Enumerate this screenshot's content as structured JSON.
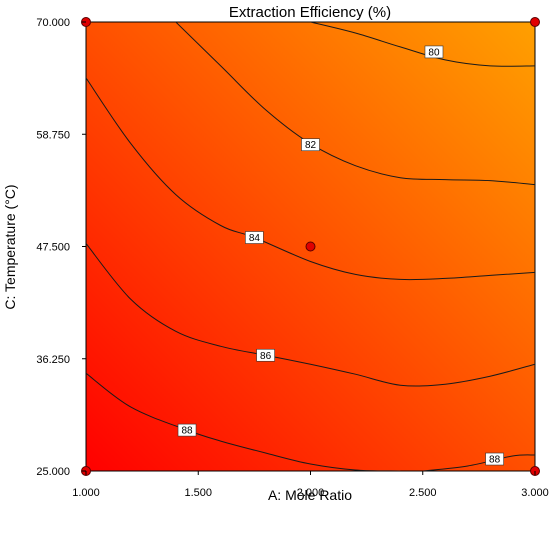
{
  "chart_data": {
    "type": "contour",
    "title": "Extraction Efficiency (%)",
    "xlabel": "A: Mole Ratio",
    "ylabel": "C: Temperature (°C)",
    "xlim": [
      1.0,
      3.0
    ],
    "ylim": [
      25.0,
      70.0
    ],
    "x_ticks": [
      "1.000",
      "1.500",
      "2.000",
      "2.500",
      "3.000"
    ],
    "y_ticks": [
      "25.000",
      "36.250",
      "47.500",
      "58.750",
      "70.000"
    ],
    "colors": {
      "low": "#ffa000",
      "high": "#ff0000"
    },
    "contours": [
      {
        "level": 80,
        "label": "80",
        "label_at": [
          2.55,
          67.0
        ],
        "points": [
          [
            2.0,
            70.0
          ],
          [
            2.2,
            68.9
          ],
          [
            2.4,
            67.5
          ],
          [
            2.6,
            66.2
          ],
          [
            2.8,
            65.6
          ],
          [
            3.0,
            65.6
          ]
        ]
      },
      {
        "level": 82,
        "label": "82",
        "label_at": [
          2.0,
          57.7
        ],
        "points": [
          [
            1.4,
            70.0
          ],
          [
            1.6,
            65.6
          ],
          [
            1.8,
            61.2
          ],
          [
            2.0,
            57.8
          ],
          [
            2.2,
            55.6
          ],
          [
            2.4,
            54.4
          ],
          [
            2.6,
            54.2
          ],
          [
            2.8,
            54.1
          ],
          [
            3.0,
            53.7
          ]
        ]
      },
      {
        "level": 84,
        "label": "84",
        "label_at": [
          1.75,
          48.4
        ],
        "points": [
          [
            1.0,
            64.4
          ],
          [
            1.2,
            57.8
          ],
          [
            1.4,
            52.7
          ],
          [
            1.6,
            49.6
          ],
          [
            1.75,
            48.4
          ],
          [
            2.0,
            46.0
          ],
          [
            2.2,
            44.7
          ],
          [
            2.4,
            44.2
          ],
          [
            2.6,
            44.3
          ],
          [
            2.8,
            44.6
          ],
          [
            3.0,
            44.9
          ]
        ]
      },
      {
        "level": 86,
        "label": "86",
        "label_at": [
          1.8,
          36.6
        ],
        "points": [
          [
            1.0,
            47.8
          ],
          [
            1.2,
            42.2
          ],
          [
            1.4,
            39.0
          ],
          [
            1.6,
            37.5
          ],
          [
            1.8,
            36.6
          ],
          [
            2.0,
            35.7
          ],
          [
            2.2,
            34.7
          ],
          [
            2.4,
            33.6
          ],
          [
            2.6,
            33.7
          ],
          [
            2.8,
            34.5
          ],
          [
            3.0,
            35.7
          ]
        ]
      },
      {
        "level": 88,
        "label": "88",
        "label_at": [
          1.45,
          29.1
        ],
        "points": [
          [
            1.0,
            34.8
          ],
          [
            1.2,
            31.4
          ],
          [
            1.45,
            29.1
          ],
          [
            1.6,
            28.0
          ],
          [
            1.8,
            26.8
          ],
          [
            2.0,
            25.7
          ],
          [
            2.2,
            25.1
          ],
          [
            2.4,
            25.0
          ]
        ]
      },
      {
        "level": 88,
        "label": "88",
        "label_at": [
          2.82,
          26.2
        ],
        "points": [
          [
            2.5,
            25.0
          ],
          [
            2.7,
            25.5
          ],
          [
            2.9,
            26.5
          ],
          [
            3.0,
            26.6
          ]
        ]
      }
    ],
    "design_points": [
      [
        1.0,
        70.0
      ],
      [
        3.0,
        70.0
      ],
      [
        1.0,
        25.0
      ],
      [
        3.0,
        25.0
      ],
      [
        2.0,
        47.5
      ]
    ]
  }
}
